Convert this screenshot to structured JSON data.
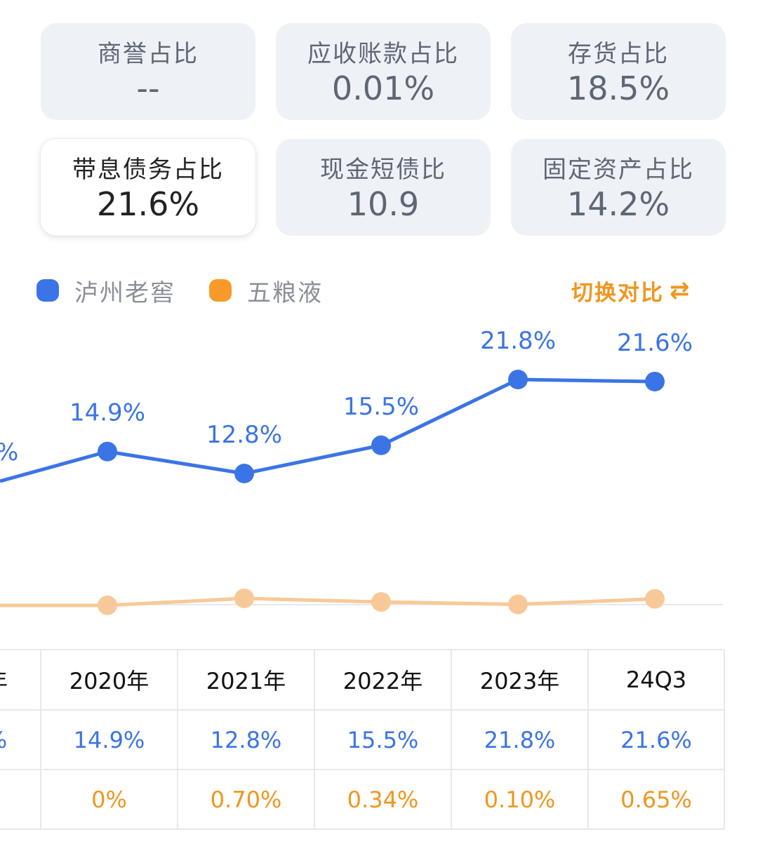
{
  "metrics": [
    {
      "label": "商誉占比",
      "value": "--"
    },
    {
      "label": "应收账款占比",
      "value": "0.01%"
    },
    {
      "label": "存货占比",
      "value": "18.5%"
    },
    {
      "label": "带息债务占比",
      "value": "21.6%"
    },
    {
      "label": "现金短债比",
      "value": "10.9"
    },
    {
      "label": "固定资产占比",
      "value": "14.2%"
    }
  ],
  "legend": {
    "series_a": {
      "label": "泸州老窖",
      "color": "#3b74e6"
    },
    "series_b": {
      "label": "五粮液",
      "color": "#f89a2a"
    }
  },
  "switch": {
    "label": "切换对比",
    "icon": "switch-icon"
  },
  "chart_data": {
    "type": "line",
    "categories": [
      "2020年",
      "2021年",
      "2022年",
      "2023年",
      "24Q3"
    ],
    "series": [
      {
        "name": "泸州老窖",
        "values": [
          14.9,
          12.8,
          15.5,
          21.8,
          21.6
        ],
        "labels": [
          "14.9%",
          "12.8%",
          "15.5%",
          "21.8%",
          "21.6%"
        ],
        "color": "#3b74e6"
      },
      {
        "name": "五粮液",
        "values": [
          0,
          0.7,
          0.34,
          0.1,
          0.65
        ],
        "labels": [
          "0%",
          "0.70%",
          "0.34%",
          "0.10%",
          "0.65%"
        ],
        "color": "#f8c998"
      }
    ],
    "partial_left": {
      "lz_label": "%",
      "row_lz": "%",
      "header": "年"
    },
    "grid": false
  }
}
